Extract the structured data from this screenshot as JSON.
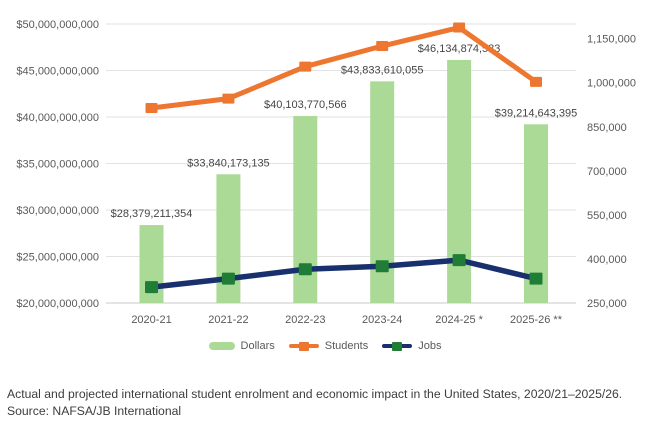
{
  "chart_data": {
    "type": "combo",
    "title": "",
    "categories": [
      "2020-21",
      "2021-22",
      "2022-23",
      "2023-24",
      "2024-25 *",
      "2025-26 **"
    ],
    "series": [
      {
        "name": "Dollars",
        "type": "bar",
        "axis": "left",
        "color": "#abda97",
        "values": [
          28379211354,
          33840173135,
          40103770566,
          43833610055,
          46134874583,
          39214643395
        ],
        "data_labels": [
          "$28,379,211,354",
          "$33,840,173,135",
          "$40,103,770,566",
          "$43,833,610,055",
          "$46,134,874,583",
          "$39,214,643,395"
        ]
      },
      {
        "name": "Students",
        "type": "line",
        "axis": "right",
        "color": "#ed7631",
        "marker": "square",
        "marker_color": "#ed7631",
        "values_estimated": [
          914000,
          946000,
          1055000,
          1125000,
          1188000,
          1003000
        ]
      },
      {
        "name": "Jobs",
        "type": "line",
        "axis": "right",
        "color": "#18316e",
        "marker": "square",
        "marker_color": "#1f7d35",
        "values_estimated": [
          304000,
          333000,
          365000,
          375000,
          396000,
          333000
        ]
      }
    ],
    "left_axis": {
      "min": 20000000000,
      "max": 50000000000,
      "step": 5000000000,
      "tick_labels": [
        "$50,000,000,000",
        "$45,000,000,000",
        "$40,000,000,000",
        "$35,000,000,000",
        "$30,000,000,000",
        "$25,000,000,000",
        "$20,000,000,000"
      ]
    },
    "right_axis": {
      "min": 250000,
      "max": 1200000,
      "step": 150000,
      "tick_values": [
        1150000,
        1000000,
        850000,
        700000,
        550000,
        400000,
        250000
      ],
      "tick_labels": [
        "1,150,000",
        "1,000,000",
        "850,000",
        "700,000",
        "550,000",
        "400,000",
        "250,000"
      ]
    },
    "grid": true,
    "legend_position": "bottom"
  },
  "legend": {
    "items": [
      {
        "label": "Dollars"
      },
      {
        "label": "Students"
      },
      {
        "label": "Jobs"
      }
    ]
  },
  "caption": {
    "text": "Actual and projected international student enrolment and economic impact in the United States, 2020/21–2025/26.",
    "source": "Source: NAFSA/JB International"
  },
  "colors": {
    "bar_green": "#abda97",
    "students_orange": "#ed7631",
    "jobs_navy": "#18316e",
    "jobs_marker_green": "#1f7d35",
    "gridline": "#e2e2e2",
    "axis_line": "#c9c9c9",
    "axis_text": "#595959",
    "data_label_text": "#454545",
    "caption_text": "#3d3d3d"
  }
}
